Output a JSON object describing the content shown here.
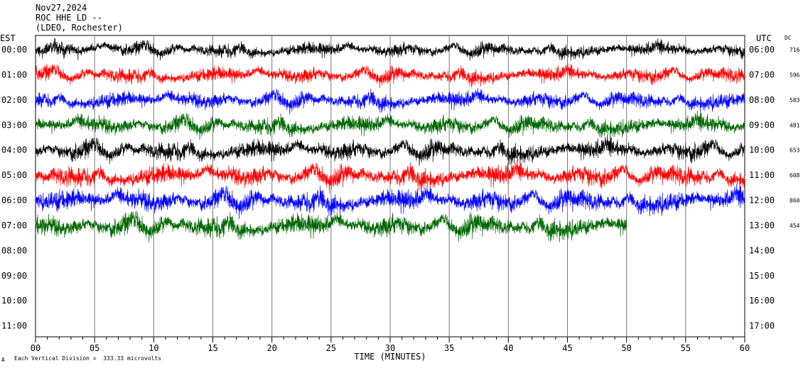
{
  "header": {
    "date": "Nov27,2024",
    "station": "ROC HHE LD --",
    "network": "(LDEO, Rochester)"
  },
  "left_label": "EST",
  "right_label": "UTC",
  "dc_label": "DC",
  "footer": {
    "scale_note": "Each Vertical Division =  333.33 microvolts",
    "corner_mark": "A"
  },
  "chart_data": {
    "type": "line",
    "title": "",
    "xlabel": "TIME (MINUTES)",
    "ylabel": "",
    "xlim": [
      0,
      60
    ],
    "x_ticks": [
      "00",
      "05",
      "10",
      "15",
      "20",
      "25",
      "30",
      "35",
      "40",
      "45",
      "50",
      "55",
      "60"
    ],
    "left_hours": [
      "00:00",
      "01:00",
      "02:00",
      "03:00",
      "04:00",
      "05:00",
      "06:00",
      "07:00",
      "08:00",
      "09:00",
      "10:00",
      "11:00"
    ],
    "right_hours": [
      "06:00",
      "07:00",
      "08:00",
      "09:00",
      "10:00",
      "11:00",
      "12:00",
      "13:00",
      "14:00",
      "15:00",
      "16:00",
      "17:00"
    ],
    "dc_values": [
      "716",
      "596",
      "583",
      "481",
      "653",
      "608",
      "860",
      "454"
    ],
    "series": [
      {
        "row": 0,
        "color": "#000000",
        "end_minute": 60,
        "amplitude": 0.55
      },
      {
        "row": 1,
        "color": "#ff0000",
        "end_minute": 60,
        "amplitude": 0.6
      },
      {
        "row": 2,
        "color": "#0000ff",
        "end_minute": 60,
        "amplitude": 0.65
      },
      {
        "row": 3,
        "color": "#006600",
        "end_minute": 60,
        "amplitude": 0.7
      },
      {
        "row": 4,
        "color": "#000000",
        "end_minute": 60,
        "amplitude": 0.75
      },
      {
        "row": 5,
        "color": "#ff0000",
        "end_minute": 60,
        "amplitude": 0.8
      },
      {
        "row": 6,
        "color": "#0000ff",
        "end_minute": 60,
        "amplitude": 0.85
      },
      {
        "row": 7,
        "color": "#006600",
        "end_minute": 50,
        "amplitude": 0.85
      }
    ]
  }
}
